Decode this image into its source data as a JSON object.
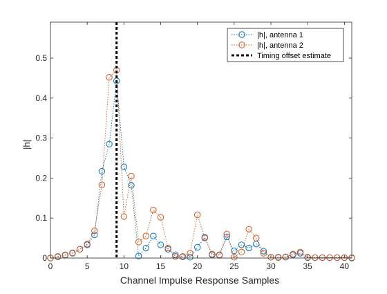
{
  "chart_data": {
    "type": "line",
    "title": "",
    "xlabel": "Channel Impulse Response Samples",
    "ylabel": "|h|",
    "xlim": [
      0,
      41
    ],
    "ylim": [
      0,
      0.59
    ],
    "xticks": [
      0,
      5,
      10,
      15,
      20,
      25,
      30,
      35,
      40
    ],
    "yticks": [
      0,
      0.1,
      0.2,
      0.3,
      0.4,
      0.5
    ],
    "xtick_labels": [
      "0",
      "5",
      "10",
      "15",
      "20",
      "25",
      "30",
      "35",
      "40"
    ],
    "ytick_labels": [
      "0",
      "0.1",
      "0.2",
      "0.3",
      "0.4",
      "0.5"
    ],
    "grid": false,
    "legend_position": "top-right",
    "series": [
      {
        "name": "|h|, antenna 1",
        "color": "#0072BD",
        "line_style": "dotted",
        "marker": "circle",
        "x": [
          0,
          1,
          2,
          3,
          4,
          5,
          6,
          7,
          8,
          9,
          10,
          11,
          12,
          13,
          14,
          15,
          16,
          17,
          18,
          19,
          20,
          21,
          22,
          23,
          24,
          25,
          26,
          27,
          28,
          29,
          30,
          31,
          32,
          33,
          34,
          35,
          36,
          37,
          38,
          39,
          40,
          41
        ],
        "y": [
          0,
          0.003,
          0.007,
          0.012,
          0.022,
          0.033,
          0.058,
          0.217,
          0.285,
          0.443,
          0.228,
          0.182,
          0.005,
          0.025,
          0.055,
          0.033,
          0.022,
          0.008,
          0.003,
          0.002,
          0.027,
          0.052,
          0.008,
          0.007,
          0.053,
          0.018,
          0.033,
          0.025,
          0.035,
          0.017,
          0.002,
          0.002,
          0.002,
          0.008,
          0.012,
          0.001,
          0.001,
          0.001,
          0.001,
          0.001,
          0.001,
          0
        ]
      },
      {
        "name": "|h|, antenna 2",
        "color": "#D95319",
        "line_style": "dotted",
        "marker": "circle",
        "x": [
          0,
          1,
          2,
          3,
          4,
          5,
          6,
          7,
          8,
          9,
          10,
          11,
          12,
          13,
          14,
          15,
          16,
          17,
          18,
          19,
          20,
          21,
          22,
          23,
          24,
          25,
          26,
          27,
          28,
          29,
          30,
          31,
          32,
          33,
          34,
          35,
          36,
          37,
          38,
          39,
          40,
          41
        ],
        "y": [
          0,
          0.004,
          0.008,
          0.013,
          0.022,
          0.035,
          0.068,
          0.183,
          0.452,
          0.47,
          0.104,
          0.205,
          0.04,
          0.055,
          0.12,
          0.102,
          0.025,
          0.004,
          0.004,
          0.012,
          0.108,
          0.05,
          0.01,
          0.008,
          0.06,
          0.002,
          0.015,
          0.072,
          0.05,
          0.012,
          0.002,
          0.001,
          0.003,
          0.01,
          0.015,
          0.002,
          0.001,
          0.001,
          0.001,
          0.001,
          0.001,
          0.001
        ]
      },
      {
        "name": "Timing offset estimate",
        "color": "#000000",
        "line_style": "dashed-thick",
        "type": "vertical-line",
        "x": 9
      }
    ]
  }
}
